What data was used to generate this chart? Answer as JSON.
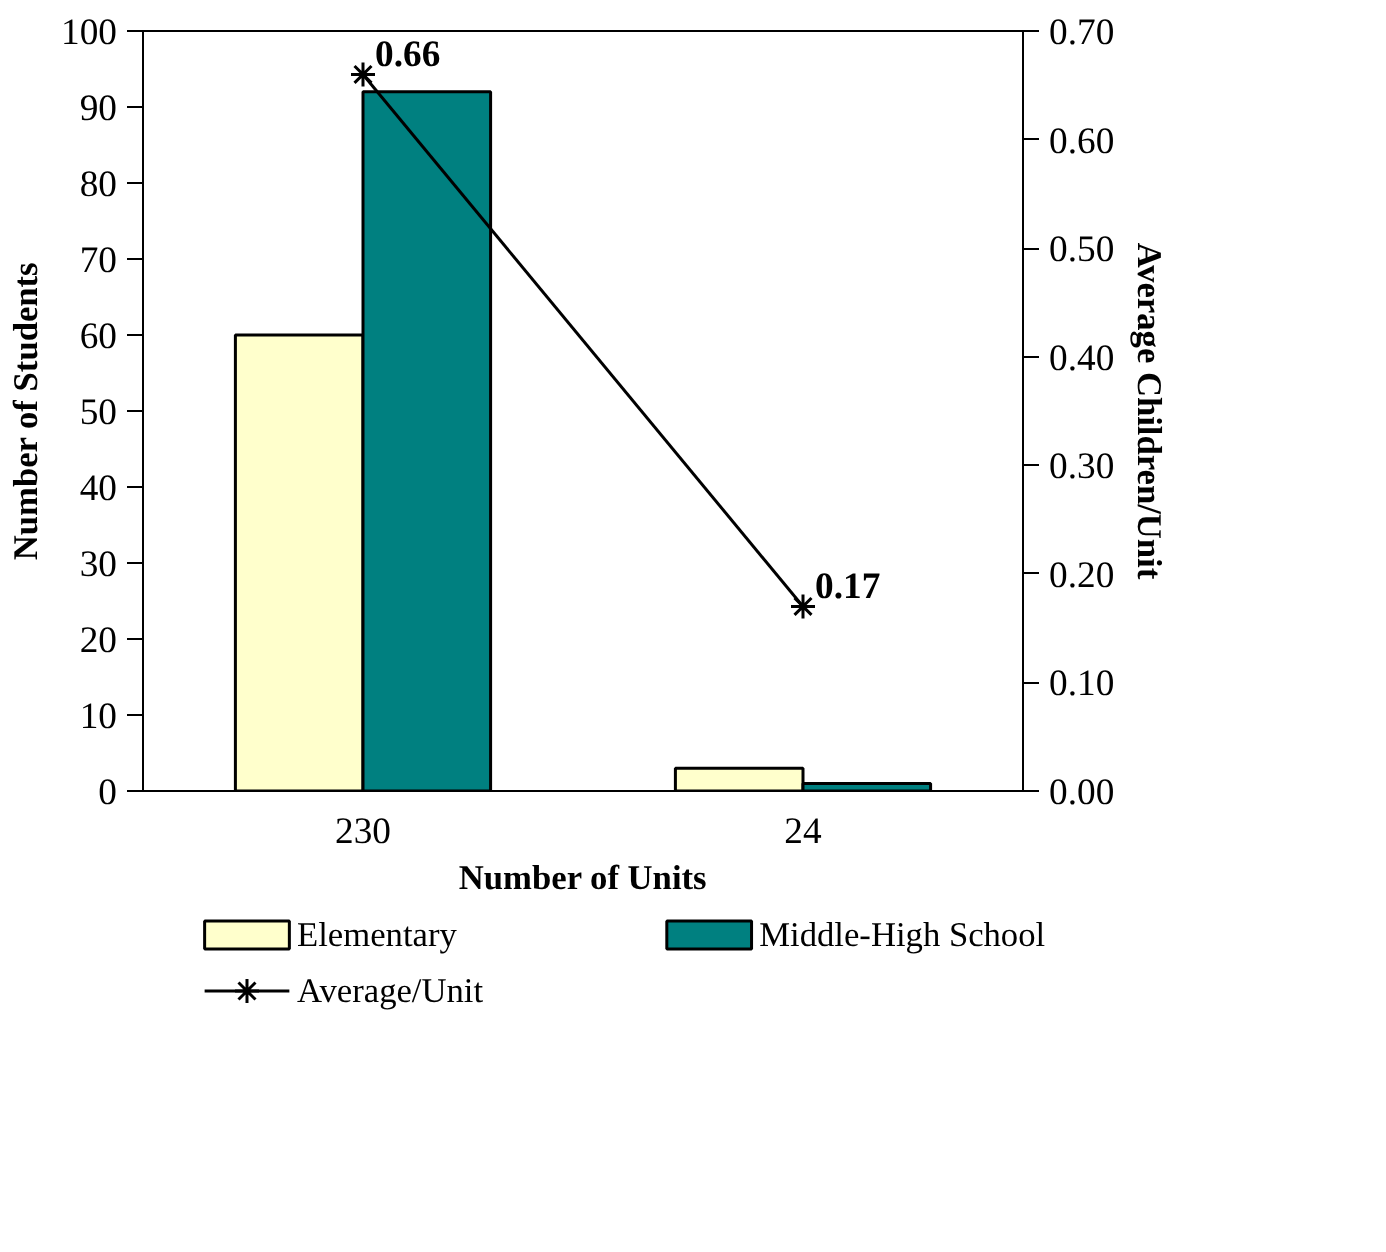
{
  "chart_data": {
    "type": "bar",
    "xlabel": "Number of Units",
    "ylabel": "Number of Students",
    "y2label": "Average Children/Unit",
    "categories": [
      "230",
      "24"
    ],
    "series": [
      {
        "name": "Elementary",
        "color": "#ffffcc",
        "values": [
          60,
          3
        ]
      },
      {
        "name": "Middle-High School",
        "color": "#008080",
        "values": [
          92,
          1
        ]
      },
      {
        "name": "Average/Unit",
        "type": "line",
        "axis": "y2",
        "color": "#000000",
        "x": [
          "230",
          "24"
        ],
        "values": [
          0.66,
          0.17
        ],
        "value_labels": [
          "0.66",
          "0.17"
        ],
        "marker": "cross",
        "line_style": "solid"
      }
    ],
    "ylim": [
      0,
      100
    ],
    "yticks": [
      0,
      10,
      20,
      30,
      40,
      50,
      60,
      70,
      80,
      90,
      100
    ],
    "y2lim": [
      0,
      0.7
    ],
    "y2ticks": [
      {
        "value": 0,
        "label": "0.00"
      },
      {
        "value": 0.1,
        "label": "0.10"
      },
      {
        "value": 0.2,
        "label": "0.20"
      },
      {
        "value": 0.3,
        "label": "0.30"
      },
      {
        "value": 0.4,
        "label": "0.40"
      },
      {
        "value": 0.5,
        "label": "0.50"
      },
      {
        "value": 0.6,
        "label": "0.60"
      },
      {
        "value": 0.7,
        "label": "0.70"
      }
    ],
    "grid": false,
    "legend": "bottom"
  }
}
